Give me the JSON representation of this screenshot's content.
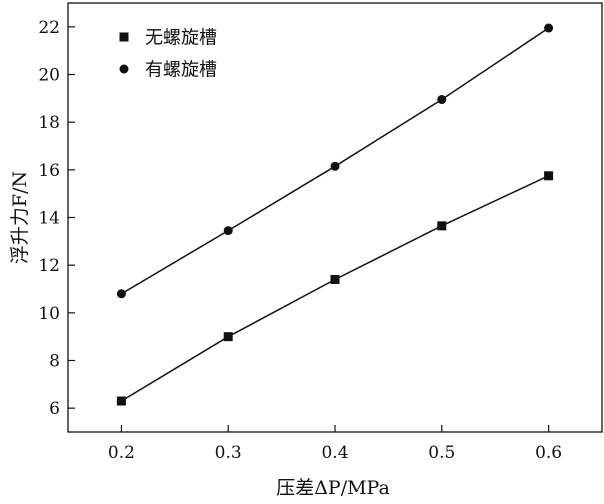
{
  "chart_data": {
    "type": "line",
    "title": "",
    "xlabel": "压差ΔP/MPa",
    "ylabel": "浮升力F/N",
    "xlim": [
      0.15,
      0.65
    ],
    "ylim": [
      5,
      23
    ],
    "x": [
      0.2,
      0.3,
      0.4,
      0.5,
      0.6
    ],
    "xticks": [
      0.2,
      0.3,
      0.4,
      0.5,
      0.6
    ],
    "xtick_labels": [
      "0.2",
      "0.3",
      "0.4",
      "0.5",
      "0.6"
    ],
    "yticks": [
      6,
      8,
      10,
      12,
      14,
      16,
      18,
      20,
      22
    ],
    "ytick_labels": [
      "6",
      "8",
      "10",
      "12",
      "14",
      "16",
      "18",
      "20",
      "22"
    ],
    "grid": false,
    "legend_position": "top-left",
    "series": [
      {
        "name": "无螺旋槽",
        "marker": "square",
        "values": [
          6.3,
          9.0,
          11.4,
          13.65,
          15.75
        ]
      },
      {
        "name": "有螺旋槽",
        "marker": "circle",
        "values": [
          10.8,
          13.45,
          16.15,
          18.95,
          21.95
        ]
      }
    ],
    "colors": {
      "line": "#111111",
      "marker": "#111111",
      "axis": "#111111"
    }
  }
}
